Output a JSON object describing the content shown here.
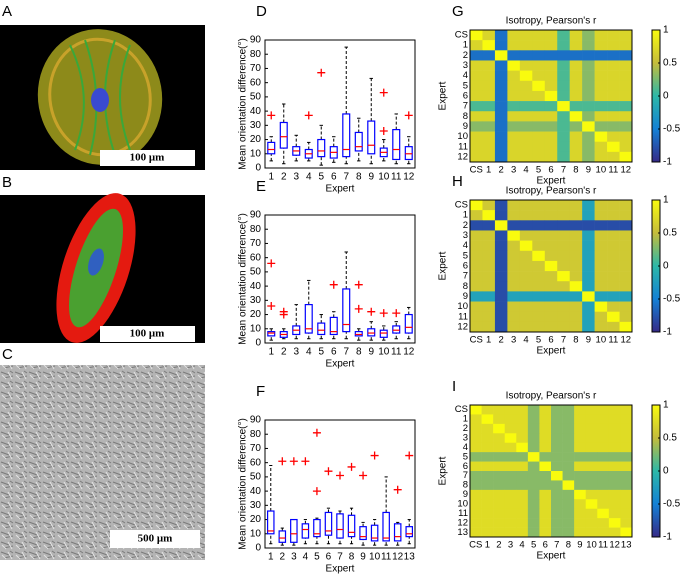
{
  "images": [
    {
      "label": "A",
      "scale_bar": "100 μm"
    },
    {
      "label": "B",
      "scale_bar": "100 μm"
    },
    {
      "label": "C",
      "scale_bar": "500 μm"
    }
  ],
  "chart_data": [
    {
      "type": "box",
      "label": "D",
      "ylabel": "Mean orientation difference(°)",
      "xlabel": "Expert",
      "categories": [
        "1",
        "2",
        "3",
        "4",
        "5",
        "6",
        "7",
        "8",
        "9",
        "10",
        "11",
        "12"
      ],
      "ylim": [
        0,
        90
      ],
      "yticks": [
        0,
        10,
        20,
        30,
        40,
        50,
        60,
        70,
        80,
        90
      ],
      "color": "#0000ff",
      "median_color": "#ff0000",
      "boxes": [
        {
          "min": 5,
          "q1": 10,
          "median": 13,
          "q3": 18,
          "max": 22,
          "outliers": [
            37
          ]
        },
        {
          "min": 3,
          "q1": 14,
          "median": 22,
          "q3": 32,
          "max": 45,
          "outliers": []
        },
        {
          "min": 5,
          "q1": 9,
          "median": 12,
          "q3": 15,
          "max": 23,
          "outliers": []
        },
        {
          "min": 5,
          "q1": 7,
          "median": 10,
          "q3": 13,
          "max": 18,
          "outliers": [
            37
          ]
        },
        {
          "min": 2,
          "q1": 8,
          "median": 12,
          "q3": 20,
          "max": 30,
          "outliers": [
            67
          ]
        },
        {
          "min": 4,
          "q1": 7,
          "median": 11,
          "q3": 15,
          "max": 22,
          "outliers": []
        },
        {
          "min": 3,
          "q1": 8,
          "median": 13,
          "q3": 38,
          "max": 85,
          "outliers": []
        },
        {
          "min": 5,
          "q1": 12,
          "median": 15,
          "q3": 25,
          "max": 35,
          "outliers": []
        },
        {
          "min": 3,
          "q1": 10,
          "median": 16,
          "q3": 33,
          "max": 63,
          "outliers": []
        },
        {
          "min": 5,
          "q1": 8,
          "median": 11,
          "q3": 14,
          "max": 20,
          "outliers": [
            53,
            26
          ]
        },
        {
          "min": 3,
          "q1": 6,
          "median": 13,
          "q3": 27,
          "max": 38,
          "outliers": []
        },
        {
          "min": 3,
          "q1": 6,
          "median": 10,
          "q3": 15,
          "max": 22,
          "outliers": [
            37
          ]
        }
      ]
    },
    {
      "type": "box",
      "label": "E",
      "ylabel": "Mean orientation difference(°)",
      "xlabel": "Expert",
      "categories": [
        "1",
        "2",
        "3",
        "4",
        "5",
        "6",
        "7",
        "8",
        "9",
        "10",
        "11",
        "12"
      ],
      "ylim": [
        0,
        90
      ],
      "yticks": [
        0,
        10,
        20,
        30,
        40,
        50,
        60,
        70,
        80,
        90
      ],
      "color": "#0000ff",
      "median_color": "#ff0000",
      "boxes": [
        {
          "min": 2,
          "q1": 5,
          "median": 7,
          "q3": 8,
          "max": 10,
          "outliers": [
            56,
            26
          ]
        },
        {
          "min": 3,
          "q1": 4,
          "median": 6,
          "q3": 8,
          "max": 10,
          "outliers": [
            22,
            20
          ]
        },
        {
          "min": 3,
          "q1": 6,
          "median": 9,
          "q3": 12,
          "max": 27,
          "outliers": []
        },
        {
          "min": 3,
          "q1": 7,
          "median": 10,
          "q3": 27,
          "max": 44,
          "outliers": []
        },
        {
          "min": 3,
          "q1": 6,
          "median": 9,
          "q3": 14,
          "max": 20,
          "outliers": []
        },
        {
          "min": 3,
          "q1": 6,
          "median": 8,
          "q3": 18,
          "max": 22,
          "outliers": [
            41
          ]
        },
        {
          "min": 3,
          "q1": 8,
          "median": 13,
          "q3": 38,
          "max": 64,
          "outliers": []
        },
        {
          "min": 2,
          "q1": 5,
          "median": 6,
          "q3": 8,
          "max": 10,
          "outliers": [
            41,
            24
          ]
        },
        {
          "min": 2,
          "q1": 5,
          "median": 7,
          "q3": 10,
          "max": 15,
          "outliers": [
            22
          ]
        },
        {
          "min": 2,
          "q1": 4,
          "median": 7,
          "q3": 9,
          "max": 12,
          "outliers": [
            21
          ]
        },
        {
          "min": 3,
          "q1": 7,
          "median": 9,
          "q3": 12,
          "max": 15,
          "outliers": [
            21
          ]
        },
        {
          "min": 3,
          "q1": 7,
          "median": 11,
          "q3": 20,
          "max": 25,
          "outliers": []
        }
      ]
    },
    {
      "type": "box",
      "label": "F",
      "ylabel": "Mean orientation difference(°)",
      "xlabel": "Expert",
      "categories": [
        "1",
        "2",
        "3",
        "4",
        "5",
        "6",
        "7",
        "8",
        "9",
        "10",
        "11",
        "12",
        "13"
      ],
      "ylim": [
        0,
        90
      ],
      "yticks": [
        0,
        10,
        20,
        30,
        40,
        50,
        60,
        70,
        80,
        90
      ],
      "color": "#0000ff",
      "median_color": "#ff0000",
      "boxes": [
        {
          "min": 3,
          "q1": 10,
          "median": 12,
          "q3": 26,
          "max": 58,
          "outliers": []
        },
        {
          "min": 2,
          "q1": 4,
          "median": 7,
          "q3": 12,
          "max": 14,
          "outliers": [
            61
          ]
        },
        {
          "min": 2,
          "q1": 4,
          "median": 10,
          "q3": 20,
          "max": 20,
          "outliers": [
            61
          ]
        },
        {
          "min": 3,
          "q1": 7,
          "median": 13,
          "q3": 17,
          "max": 20,
          "outliers": [
            61
          ]
        },
        {
          "min": 3,
          "q1": 8,
          "median": 10,
          "q3": 20,
          "max": 21,
          "outliers": [
            81,
            40
          ]
        },
        {
          "min": 3,
          "q1": 9,
          "median": 12,
          "q3": 25,
          "max": 28,
          "outliers": [
            54
          ]
        },
        {
          "min": 3,
          "q1": 7,
          "median": 13,
          "q3": 24,
          "max": 26,
          "outliers": [
            51
          ]
        },
        {
          "min": 3,
          "q1": 8,
          "median": 11,
          "q3": 23,
          "max": 28,
          "outliers": [
            57
          ]
        },
        {
          "min": 2,
          "q1": 6,
          "median": 8,
          "q3": 15,
          "max": 18,
          "outliers": [
            51
          ]
        },
        {
          "min": 2,
          "q1": 5,
          "median": 7,
          "q3": 16,
          "max": 20,
          "outliers": [
            65
          ]
        },
        {
          "min": 2,
          "q1": 5,
          "median": 7,
          "q3": 25,
          "max": 50,
          "outliers": []
        },
        {
          "min": 2,
          "q1": 5,
          "median": 8,
          "q3": 17,
          "max": 18,
          "outliers": [
            41
          ]
        },
        {
          "min": 3,
          "q1": 8,
          "median": 10,
          "q3": 15,
          "max": 20,
          "outliers": [
            65
          ]
        }
      ]
    },
    {
      "type": "heatmap",
      "label": "G",
      "title": "Isotropy, Pearson's r",
      "xlabel": "Expert",
      "ylabel": "Expert",
      "categories": [
        "CS",
        "1",
        "2",
        "3",
        "4",
        "5",
        "6",
        "7",
        "8",
        "9",
        "10",
        "11",
        "12"
      ],
      "clim": [
        -1,
        1
      ],
      "cticks": [
        -1,
        -0.5,
        0,
        0.5,
        1
      ],
      "values": [
        [
          1,
          0.7,
          -0.6,
          0.7,
          0.7,
          0.7,
          0.7,
          0.1,
          0.7,
          0.3,
          0.7,
          0.7,
          0.7
        ],
        [
          0.7,
          1,
          -0.6,
          0.7,
          0.7,
          0.7,
          0.7,
          0.1,
          0.7,
          0.3,
          0.7,
          0.7,
          0.7
        ],
        [
          -0.6,
          -0.6,
          1,
          -0.6,
          -0.6,
          -0.6,
          -0.6,
          -0.6,
          -0.6,
          -0.6,
          -0.6,
          -0.6,
          -0.6
        ],
        [
          0.7,
          0.7,
          -0.6,
          1,
          0.7,
          0.7,
          0.7,
          0.1,
          0.7,
          0.3,
          0.7,
          0.7,
          0.7
        ],
        [
          0.7,
          0.7,
          -0.6,
          0.7,
          1,
          0.7,
          0.7,
          0.1,
          0.7,
          0.3,
          0.7,
          0.7,
          0.7
        ],
        [
          0.7,
          0.7,
          -0.6,
          0.7,
          0.7,
          1,
          0.7,
          0.1,
          0.7,
          0.3,
          0.7,
          0.7,
          0.7
        ],
        [
          0.7,
          0.7,
          -0.6,
          0.7,
          0.7,
          0.7,
          1,
          0.1,
          0.7,
          0.3,
          0.7,
          0.7,
          0.7
        ],
        [
          0.1,
          0.1,
          -0.6,
          0.1,
          0.1,
          0.1,
          0.1,
          1,
          0.1,
          0.1,
          0.1,
          0.1,
          0.1
        ],
        [
          0.7,
          0.7,
          -0.6,
          0.7,
          0.7,
          0.7,
          0.7,
          0.1,
          1,
          0.3,
          0.7,
          0.7,
          0.7
        ],
        [
          0.3,
          0.3,
          -0.6,
          0.3,
          0.3,
          0.3,
          0.3,
          0.1,
          0.3,
          1,
          0.3,
          0.3,
          0.3
        ],
        [
          0.7,
          0.7,
          -0.6,
          0.7,
          0.7,
          0.7,
          0.7,
          0.1,
          0.7,
          0.3,
          1,
          0.7,
          0.7
        ],
        [
          0.7,
          0.7,
          -0.6,
          0.7,
          0.7,
          0.7,
          0.7,
          0.1,
          0.7,
          0.3,
          0.7,
          1,
          0.7
        ],
        [
          0.7,
          0.7,
          -0.6,
          0.7,
          0.7,
          0.7,
          0.7,
          0.1,
          0.7,
          0.3,
          0.7,
          0.7,
          1
        ]
      ]
    },
    {
      "type": "heatmap",
      "label": "H",
      "title": "Isotropy, Pearson's r",
      "xlabel": "Expert",
      "ylabel": "Expert",
      "categories": [
        "CS",
        "1",
        "2",
        "3",
        "4",
        "5",
        "6",
        "7",
        "8",
        "9",
        "10",
        "11",
        "12"
      ],
      "clim": [
        -1,
        1
      ],
      "cticks": [
        -1,
        -0.5,
        0,
        0.5,
        1
      ],
      "values": [
        [
          1,
          0.6,
          -0.8,
          0.6,
          0.6,
          0.6,
          0.6,
          0.6,
          0.6,
          -0.2,
          0.6,
          0.6,
          0.6
        ],
        [
          0.6,
          1,
          -0.8,
          0.6,
          0.6,
          0.6,
          0.6,
          0.6,
          0.6,
          -0.2,
          0.6,
          0.6,
          0.6
        ],
        [
          -0.8,
          -0.8,
          1,
          -0.8,
          -0.8,
          -0.8,
          -0.8,
          -0.8,
          -0.8,
          -0.8,
          -0.8,
          -0.8,
          -0.8
        ],
        [
          0.6,
          0.6,
          -0.8,
          1,
          0.6,
          0.6,
          0.6,
          0.6,
          0.6,
          -0.2,
          0.6,
          0.6,
          0.6
        ],
        [
          0.6,
          0.6,
          -0.8,
          0.6,
          1,
          0.6,
          0.6,
          0.6,
          0.6,
          -0.2,
          0.6,
          0.6,
          0.6
        ],
        [
          0.6,
          0.6,
          -0.8,
          0.6,
          0.6,
          1,
          0.6,
          0.6,
          0.6,
          -0.2,
          0.6,
          0.6,
          0.6
        ],
        [
          0.6,
          0.6,
          -0.8,
          0.6,
          0.6,
          0.6,
          1,
          0.6,
          0.6,
          -0.2,
          0.6,
          0.6,
          0.6
        ],
        [
          0.6,
          0.6,
          -0.8,
          0.6,
          0.6,
          0.6,
          0.6,
          1,
          0.6,
          -0.2,
          0.6,
          0.6,
          0.6
        ],
        [
          0.6,
          0.6,
          -0.8,
          0.6,
          0.6,
          0.6,
          0.6,
          0.6,
          1,
          -0.2,
          0.6,
          0.6,
          0.6
        ],
        [
          -0.2,
          -0.2,
          -0.8,
          -0.2,
          -0.2,
          -0.2,
          -0.2,
          -0.2,
          -0.2,
          1,
          -0.2,
          -0.2,
          -0.2
        ],
        [
          0.6,
          0.6,
          -0.8,
          0.6,
          0.6,
          0.6,
          0.6,
          0.6,
          0.6,
          -0.2,
          1,
          0.6,
          0.6
        ],
        [
          0.6,
          0.6,
          -0.8,
          0.6,
          0.6,
          0.6,
          0.6,
          0.6,
          0.6,
          -0.2,
          0.6,
          1,
          0.6
        ],
        [
          0.6,
          0.6,
          -0.8,
          0.6,
          0.6,
          0.6,
          0.6,
          0.6,
          0.6,
          -0.2,
          0.6,
          0.6,
          1
        ]
      ]
    },
    {
      "type": "heatmap",
      "label": "I",
      "title": "Isotropy, Pearson's r",
      "xlabel": "Expert",
      "ylabel": "Expert",
      "categories": [
        "CS",
        "1",
        "2",
        "3",
        "4",
        "5",
        "6",
        "7",
        "8",
        "9",
        "10",
        "11",
        "12",
        "13"
      ],
      "clim": [
        -1,
        1
      ],
      "cticks": [
        -1,
        -0.5,
        0,
        0.5,
        1
      ],
      "values": [
        [
          1,
          0.75,
          0.75,
          0.75,
          0.75,
          0.3,
          0.75,
          0.3,
          0.3,
          0.75,
          0.75,
          0.75,
          0.75,
          0.75
        ],
        [
          0.75,
          1,
          0.75,
          0.75,
          0.75,
          0.3,
          0.75,
          0.3,
          0.3,
          0.75,
          0.75,
          0.75,
          0.75,
          0.75
        ],
        [
          0.75,
          0.75,
          1,
          0.75,
          0.75,
          0.3,
          0.75,
          0.3,
          0.3,
          0.75,
          0.75,
          0.75,
          0.75,
          0.75
        ],
        [
          0.75,
          0.75,
          0.75,
          1,
          0.75,
          0.3,
          0.75,
          0.3,
          0.3,
          0.75,
          0.75,
          0.75,
          0.75,
          0.75
        ],
        [
          0.75,
          0.75,
          0.75,
          0.75,
          1,
          0.3,
          0.75,
          0.3,
          0.3,
          0.75,
          0.75,
          0.75,
          0.75,
          0.75
        ],
        [
          0.3,
          0.3,
          0.3,
          0.3,
          0.3,
          1,
          0.3,
          0.3,
          0.3,
          0.3,
          0.3,
          0.3,
          0.3,
          0.3
        ],
        [
          0.75,
          0.75,
          0.75,
          0.75,
          0.75,
          0.3,
          1,
          0.3,
          0.3,
          0.75,
          0.75,
          0.75,
          0.75,
          0.75
        ],
        [
          0.3,
          0.3,
          0.3,
          0.3,
          0.3,
          0.3,
          0.3,
          1,
          0.3,
          0.3,
          0.3,
          0.3,
          0.3,
          0.3
        ],
        [
          0.3,
          0.3,
          0.3,
          0.3,
          0.3,
          0.3,
          0.3,
          0.3,
          1,
          0.3,
          0.3,
          0.3,
          0.3,
          0.3
        ],
        [
          0.75,
          0.75,
          0.75,
          0.75,
          0.75,
          0.3,
          0.75,
          0.3,
          0.3,
          1,
          0.75,
          0.75,
          0.75,
          0.75
        ],
        [
          0.75,
          0.75,
          0.75,
          0.75,
          0.75,
          0.3,
          0.75,
          0.3,
          0.3,
          0.75,
          1,
          0.75,
          0.75,
          0.75
        ],
        [
          0.75,
          0.75,
          0.75,
          0.75,
          0.75,
          0.3,
          0.75,
          0.3,
          0.3,
          0.75,
          0.75,
          1,
          0.75,
          0.75
        ],
        [
          0.75,
          0.75,
          0.75,
          0.75,
          0.75,
          0.3,
          0.75,
          0.3,
          0.3,
          0.75,
          0.75,
          0.75,
          1,
          0.75
        ],
        [
          0.75,
          0.75,
          0.75,
          0.75,
          0.75,
          0.3,
          0.75,
          0.3,
          0.3,
          0.75,
          0.75,
          0.75,
          0.75,
          1
        ]
      ]
    }
  ]
}
